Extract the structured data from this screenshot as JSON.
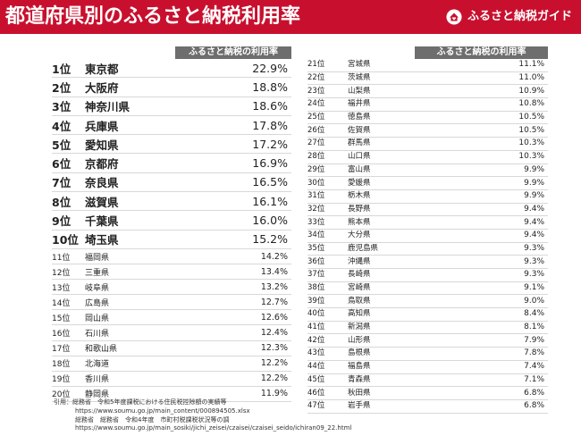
{
  "header": {
    "title": "都道府県別のふるさと納税利用率",
    "brand": "ふるさと納税ガイド",
    "logo_icon": "house-heart-icon"
  },
  "table_header": "ふるさと納税の利用率",
  "left_rows": [
    {
      "rank": "1位",
      "name": "東京都",
      "rate": "22.9%"
    },
    {
      "rank": "2位",
      "name": "大阪府",
      "rate": "18.8%"
    },
    {
      "rank": "3位",
      "name": "神奈川県",
      "rate": "18.6%"
    },
    {
      "rank": "4位",
      "name": "兵庫県",
      "rate": "17.8%"
    },
    {
      "rank": "5位",
      "name": "愛知県",
      "rate": "17.2%"
    },
    {
      "rank": "6位",
      "name": "京都府",
      "rate": "16.9%"
    },
    {
      "rank": "7位",
      "name": "奈良県",
      "rate": "16.5%"
    },
    {
      "rank": "8位",
      "name": "滋賀県",
      "rate": "16.1%"
    },
    {
      "rank": "9位",
      "name": "千葉県",
      "rate": "16.0%"
    },
    {
      "rank": "10位",
      "name": "埼玉県",
      "rate": "15.2%"
    },
    {
      "rank": "11位",
      "name": "福岡県",
      "rate": "14.2%"
    },
    {
      "rank": "12位",
      "name": "三重県",
      "rate": "13.4%"
    },
    {
      "rank": "13位",
      "name": "岐阜県",
      "rate": "13.2%"
    },
    {
      "rank": "14位",
      "name": "広島県",
      "rate": "12.7%"
    },
    {
      "rank": "15位",
      "name": "岡山県",
      "rate": "12.6%"
    },
    {
      "rank": "16位",
      "name": "石川県",
      "rate": "12.4%"
    },
    {
      "rank": "17位",
      "name": "和歌山県",
      "rate": "12.3%"
    },
    {
      "rank": "18位",
      "name": "北海道",
      "rate": "12.2%"
    },
    {
      "rank": "19位",
      "name": "香川県",
      "rate": "12.2%"
    },
    {
      "rank": "20位",
      "name": "静岡県",
      "rate": "11.9%"
    }
  ],
  "right_rows": [
    {
      "rank": "21位",
      "name": "宮城県",
      "rate": "11.1%"
    },
    {
      "rank": "22位",
      "name": "茨城県",
      "rate": "11.0%"
    },
    {
      "rank": "23位",
      "name": "山梨県",
      "rate": "10.9%"
    },
    {
      "rank": "24位",
      "name": "福井県",
      "rate": "10.8%"
    },
    {
      "rank": "25位",
      "name": "徳島県",
      "rate": "10.5%"
    },
    {
      "rank": "26位",
      "name": "佐賀県",
      "rate": "10.5%"
    },
    {
      "rank": "27位",
      "name": "群馬県",
      "rate": "10.3%"
    },
    {
      "rank": "28位",
      "name": "山口県",
      "rate": "10.3%"
    },
    {
      "rank": "29位",
      "name": "富山県",
      "rate": "9.9%"
    },
    {
      "rank": "30位",
      "name": "愛媛県",
      "rate": "9.9%"
    },
    {
      "rank": "31位",
      "name": "栃木県",
      "rate": "9.9%"
    },
    {
      "rank": "32位",
      "name": "長野県",
      "rate": "9.4%"
    },
    {
      "rank": "33位",
      "name": "熊本県",
      "rate": "9.4%"
    },
    {
      "rank": "34位",
      "name": "大分県",
      "rate": "9.4%"
    },
    {
      "rank": "35位",
      "name": "鹿児島県",
      "rate": "9.3%"
    },
    {
      "rank": "36位",
      "name": "沖縄県",
      "rate": "9.3%"
    },
    {
      "rank": "37位",
      "name": "長崎県",
      "rate": "9.3%"
    },
    {
      "rank": "38位",
      "name": "宮崎県",
      "rate": "9.1%"
    },
    {
      "rank": "39位",
      "name": "鳥取県",
      "rate": "9.0%"
    },
    {
      "rank": "40位",
      "name": "高知県",
      "rate": "8.4%"
    },
    {
      "rank": "41位",
      "name": "新潟県",
      "rate": "8.1%"
    },
    {
      "rank": "42位",
      "name": "山形県",
      "rate": "7.9%"
    },
    {
      "rank": "43位",
      "name": "島根県",
      "rate": "7.8%"
    },
    {
      "rank": "44位",
      "name": "福島県",
      "rate": "7.4%"
    },
    {
      "rank": "45位",
      "name": "青森県",
      "rate": "7.1%"
    },
    {
      "rank": "46位",
      "name": "秋田県",
      "rate": "6.8%"
    },
    {
      "rank": "47位",
      "name": "岩手県",
      "rate": "6.8%"
    }
  ],
  "source": {
    "line1": "引用：総務省　令和5年度課税における住民税控除額の実績等",
    "line2": "https://www.soumu.go.jp/main_content/000894505.xlsx",
    "line3": "総務省　総務省　令和4年度　市町村税課税状況等の調",
    "line4": "https://www.soumu.go.jp/main_sosiki/jichi_zeisei/czaisei/czaisei_seido/ichiran09_22.html"
  },
  "colors": {
    "header_bg": "#c8102e",
    "table_header_bg": "#6e6e6e"
  }
}
